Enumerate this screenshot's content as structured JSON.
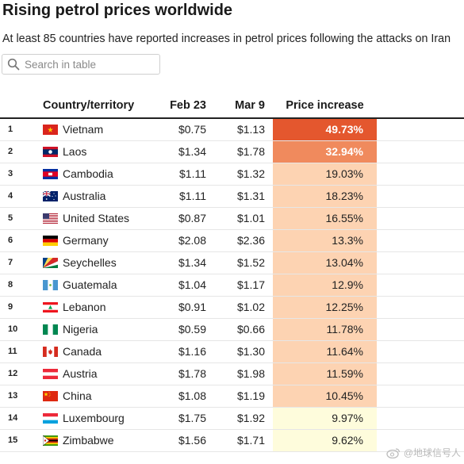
{
  "header": {
    "title": "Rising petrol prices worldwide",
    "subtitle": "At least 85 countries have reported increases in petrol prices following the attacks on Iran"
  },
  "search": {
    "placeholder": "Search in table",
    "value": ""
  },
  "table": {
    "columns": {
      "country": "Country/territory",
      "feb": "Feb 23",
      "mar": "Mar 9",
      "increase": "Price increase"
    },
    "rows": [
      {
        "rank": "1",
        "country": "Vietnam",
        "flag": "vietnam-flag-icon",
        "feb": "$0.75",
        "mar": "$1.13",
        "increase": "49.73%",
        "color": "#e4572e",
        "text_color": "#ffffff"
      },
      {
        "rank": "2",
        "country": "Laos",
        "flag": "laos-flag-icon",
        "feb": "$1.34",
        "mar": "$1.78",
        "increase": "32.94%",
        "color": "#f08a5d",
        "text_color": "#ffffff"
      },
      {
        "rank": "3",
        "country": "Cambodia",
        "flag": "cambodia-flag-icon",
        "feb": "$1.11",
        "mar": "$1.32",
        "increase": "19.03%",
        "color": "#fdd3b2",
        "text_color": "#222222"
      },
      {
        "rank": "4",
        "country": "Australia",
        "flag": "australia-flag-icon",
        "feb": "$1.11",
        "mar": "$1.31",
        "increase": "18.23%",
        "color": "#fdd3b2",
        "text_color": "#222222"
      },
      {
        "rank": "5",
        "country": "United States",
        "flag": "united-states-flag-icon",
        "feb": "$0.87",
        "mar": "$1.01",
        "increase": "16.55%",
        "color": "#fdd3b2",
        "text_color": "#222222"
      },
      {
        "rank": "6",
        "country": "Germany",
        "flag": "germany-flag-icon",
        "feb": "$2.08",
        "mar": "$2.36",
        "increase": "13.3%",
        "color": "#fdd3b2",
        "text_color": "#222222"
      },
      {
        "rank": "7",
        "country": "Seychelles",
        "flag": "seychelles-flag-icon",
        "feb": "$1.34",
        "mar": "$1.52",
        "increase": "13.04%",
        "color": "#fdd3b2",
        "text_color": "#222222"
      },
      {
        "rank": "8",
        "country": "Guatemala",
        "flag": "guatemala-flag-icon",
        "feb": "$1.04",
        "mar": "$1.17",
        "increase": "12.9%",
        "color": "#fdd3b2",
        "text_color": "#222222"
      },
      {
        "rank": "9",
        "country": "Lebanon",
        "flag": "lebanon-flag-icon",
        "feb": "$0.91",
        "mar": "$1.02",
        "increase": "12.25%",
        "color": "#fdd3b2",
        "text_color": "#222222"
      },
      {
        "rank": "10",
        "country": "Nigeria",
        "flag": "nigeria-flag-icon",
        "feb": "$0.59",
        "mar": "$0.66",
        "increase": "11.78%",
        "color": "#fdd3b2",
        "text_color": "#222222"
      },
      {
        "rank": "11",
        "country": "Canada",
        "flag": "canada-flag-icon",
        "feb": "$1.16",
        "mar": "$1.30",
        "increase": "11.64%",
        "color": "#fdd3b2",
        "text_color": "#222222"
      },
      {
        "rank": "12",
        "country": "Austria",
        "flag": "austria-flag-icon",
        "feb": "$1.78",
        "mar": "$1.98",
        "increase": "11.59%",
        "color": "#fdd3b2",
        "text_color": "#222222"
      },
      {
        "rank": "13",
        "country": "China",
        "flag": "china-flag-icon",
        "feb": "$1.08",
        "mar": "$1.19",
        "increase": "10.45%",
        "color": "#fdd3b2",
        "text_color": "#222222"
      },
      {
        "rank": "14",
        "country": "Luxembourg",
        "flag": "luxembourg-flag-icon",
        "feb": "$1.75",
        "mar": "$1.92",
        "increase": "9.97%",
        "color": "#fefcdc",
        "text_color": "#222222"
      },
      {
        "rank": "15",
        "country": "Zimbabwe",
        "flag": "zimbabwe-flag-icon",
        "feb": "$1.56",
        "mar": "$1.71",
        "increase": "9.62%",
        "color": "#fefcdc",
        "text_color": "#222222"
      }
    ]
  },
  "watermark": {
    "text": "@地球信号人"
  }
}
